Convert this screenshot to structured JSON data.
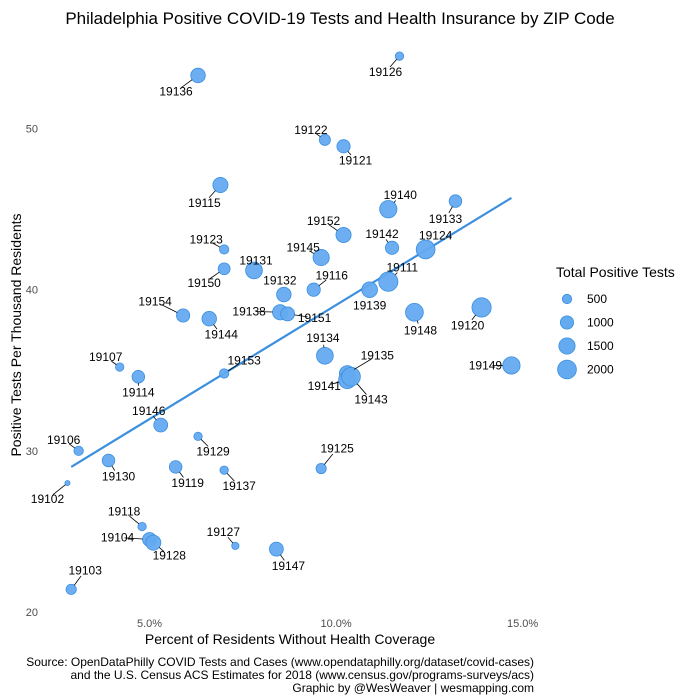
{
  "chart_data": {
    "type": "scatter",
    "title": "Philadelphia Positive COVID-19 Tests and Health Insurance by ZIP Code",
    "xlabel": "Percent of Residents Without Health Coverage",
    "ylabel": "Positive Tests Per Thousand Residents",
    "xlim": [
      2.6,
      15.6
    ],
    "ylim": [
      19.5,
      55.5
    ],
    "x_ticks": [
      5,
      10,
      15
    ],
    "x_tick_labels": [
      "5.0%",
      "10.0%",
      "15.0%"
    ],
    "y_ticks": [
      20,
      30,
      40,
      50
    ],
    "y_tick_labels": [
      "20",
      "30",
      "40",
      "50"
    ],
    "grid": false,
    "point_color": "#64aaf0",
    "point_stroke": "#3a8fe0",
    "trend_color": "#3b8fdf",
    "trendline": {
      "x": [
        2.9,
        14.7
      ],
      "y": [
        29.0,
        45.7
      ]
    },
    "points": [
      {
        "zip": "19126",
        "x": 11.7,
        "y": 54.5,
        "tests": 400
      },
      {
        "zip": "19136",
        "x": 6.3,
        "y": 53.3,
        "tests": 1200
      },
      {
        "zip": "19122",
        "x": 9.7,
        "y": 49.3,
        "tests": 700
      },
      {
        "zip": "19121",
        "x": 10.2,
        "y": 48.9,
        "tests": 1000
      },
      {
        "zip": "19115",
        "x": 6.9,
        "y": 46.5,
        "tests": 1300
      },
      {
        "zip": "19140",
        "x": 11.4,
        "y": 45.0,
        "tests": 1700
      },
      {
        "zip": "19133",
        "x": 13.2,
        "y": 45.5,
        "tests": 900
      },
      {
        "zip": "19152",
        "x": 10.2,
        "y": 43.4,
        "tests": 1300
      },
      {
        "zip": "19123",
        "x": 7.0,
        "y": 42.5,
        "tests": 500
      },
      {
        "zip": "19145",
        "x": 9.6,
        "y": 42.0,
        "tests": 1500
      },
      {
        "zip": "19142",
        "x": 11.5,
        "y": 42.6,
        "tests": 1000
      },
      {
        "zip": "19124",
        "x": 12.4,
        "y": 42.5,
        "tests": 2000
      },
      {
        "zip": "19131",
        "x": 7.8,
        "y": 41.2,
        "tests": 1600
      },
      {
        "zip": "19150",
        "x": 7.0,
        "y": 41.3,
        "tests": 800
      },
      {
        "zip": "19116",
        "x": 9.4,
        "y": 40.0,
        "tests": 1000
      },
      {
        "zip": "19111",
        "x": 11.4,
        "y": 40.5,
        "tests": 2100
      },
      {
        "zip": "19132",
        "x": 8.6,
        "y": 39.7,
        "tests": 1200
      },
      {
        "zip": "19139",
        "x": 10.9,
        "y": 40.0,
        "tests": 1400
      },
      {
        "zip": "19154",
        "x": 5.9,
        "y": 38.4,
        "tests": 1000
      },
      {
        "zip": "19138",
        "x": 8.5,
        "y": 38.6,
        "tests": 1300
      },
      {
        "zip": "19151",
        "x": 8.7,
        "y": 38.5,
        "tests": 1100
      },
      {
        "zip": "19144",
        "x": 6.6,
        "y": 38.2,
        "tests": 1200
      },
      {
        "zip": "19148",
        "x": 12.1,
        "y": 38.6,
        "tests": 1800
      },
      {
        "zip": "19120",
        "x": 13.9,
        "y": 38.9,
        "tests": 2100
      },
      {
        "zip": "19134",
        "x": 9.7,
        "y": 35.9,
        "tests": 1600
      },
      {
        "zip": "19107",
        "x": 4.2,
        "y": 35.2,
        "tests": 400
      },
      {
        "zip": "19153",
        "x": 7.0,
        "y": 34.8,
        "tests": 500
      },
      {
        "zip": "19135",
        "x": 10.3,
        "y": 34.8,
        "tests": 1400
      },
      {
        "zip": "19141",
        "x": 10.3,
        "y": 34.4,
        "tests": 1700
      },
      {
        "zip": "19143",
        "x": 10.4,
        "y": 34.6,
        "tests": 2000
      },
      {
        "zip": "19149",
        "x": 14.7,
        "y": 35.3,
        "tests": 1700
      },
      {
        "zip": "19114",
        "x": 4.7,
        "y": 34.6,
        "tests": 900
      },
      {
        "zip": "19146",
        "x": 5.3,
        "y": 31.6,
        "tests": 1100
      },
      {
        "zip": "19106",
        "x": 3.1,
        "y": 30.0,
        "tests": 500
      },
      {
        "zip": "19129",
        "x": 6.3,
        "y": 30.9,
        "tests": 400
      },
      {
        "zip": "19125",
        "x": 9.6,
        "y": 28.9,
        "tests": 600
      },
      {
        "zip": "19130",
        "x": 3.9,
        "y": 29.4,
        "tests": 900
      },
      {
        "zip": "19119",
        "x": 5.7,
        "y": 29.0,
        "tests": 900
      },
      {
        "zip": "19137",
        "x": 7.0,
        "y": 28.8,
        "tests": 400
      },
      {
        "zip": "19102",
        "x": 2.8,
        "y": 28.0,
        "tests": 150
      },
      {
        "zip": "19118",
        "x": 4.8,
        "y": 25.3,
        "tests": 400
      },
      {
        "zip": "19104",
        "x": 5.0,
        "y": 24.5,
        "tests": 1100
      },
      {
        "zip": "19128",
        "x": 5.1,
        "y": 24.3,
        "tests": 1300
      },
      {
        "zip": "19127",
        "x": 7.3,
        "y": 24.1,
        "tests": 300
      },
      {
        "zip": "19147",
        "x": 8.4,
        "y": 23.9,
        "tests": 1100
      },
      {
        "zip": "19103",
        "x": 2.9,
        "y": 21.4,
        "tests": 600
      }
    ],
    "legend": {
      "title": "Total Positive Tests",
      "placement": "right",
      "items": [
        {
          "label": "500",
          "tests": 500
        },
        {
          "label": "1000",
          "tests": 1000
        },
        {
          "label": "1500",
          "tests": 1500
        },
        {
          "label": "2000",
          "tests": 2000
        }
      ]
    }
  },
  "caption": {
    "line1": "Source: OpenDataPhilly COVID Tests and Cases (www.opendataphilly.org/dataset/covid-cases)",
    "line2": "and the U.S. Census ACS Estimates for 2018 (www.census.gov/programs-surveys/acs)",
    "line3": "Graphic by @WesWeaver | wesmapping.com"
  }
}
